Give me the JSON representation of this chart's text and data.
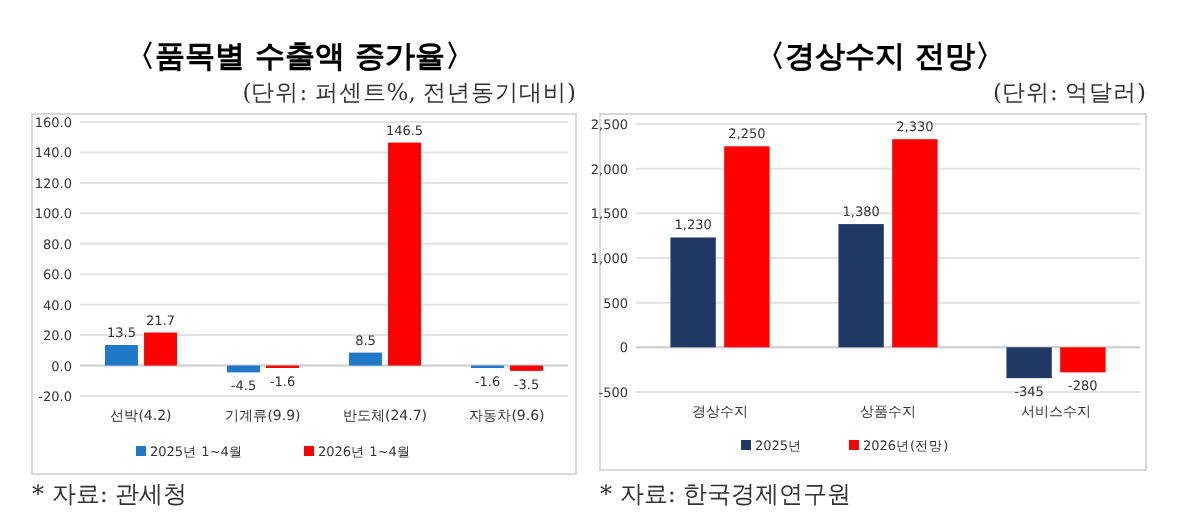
{
  "chart_data": [
    {
      "type": "bar",
      "title": "〈품목별 수출액 증가율〉",
      "subtitle": "(단위: 퍼센트%, 전년동기대비)",
      "categories": [
        "선박(4.2)",
        "기계류(9.9)",
        "반도체(24.7)",
        "자동차(9.6)"
      ],
      "series": [
        {
          "name": "2025년 1~4월",
          "color": "#1f78c8",
          "values": [
            13.5,
            -4.5,
            8.5,
            -1.6
          ]
        },
        {
          "name": "2026년 1~4월",
          "color": "#ff0000",
          "values": [
            21.7,
            -1.6,
            146.5,
            -3.5
          ]
        }
      ],
      "ylim": [
        -20,
        160
      ],
      "yticks": [
        {
          "value": -20,
          "label": "-20.0"
        },
        {
          "value": 0,
          "label": "0.0"
        },
        {
          "value": 20,
          "label": "20.0"
        },
        {
          "value": 40,
          "label": "40.0"
        },
        {
          "value": 60,
          "label": "60.0"
        },
        {
          "value": 80,
          "label": "80.0"
        },
        {
          "value": 100,
          "label": "100.0"
        },
        {
          "value": 120,
          "label": "120.0"
        },
        {
          "value": 140,
          "label": "140.0"
        },
        {
          "value": 160,
          "label": "160.0"
        }
      ],
      "grid": "y",
      "legend": "bottom",
      "data_labels": true,
      "annotations": [
        "* 자료: 관세청"
      ]
    },
    {
      "type": "bar",
      "title": "〈경상수지 전망〉",
      "subtitle": "(단위: 억달러)",
      "categories": [
        "경상수지",
        "상품수지",
        "서비스수지"
      ],
      "series": [
        {
          "name": "2025년",
          "color": "#1f3864",
          "values": [
            1230,
            1380,
            -345
          ],
          "value_labels": [
            "1,230",
            "1,380",
            "-345"
          ]
        },
        {
          "name": "2026년(전망)",
          "color": "#ff0000",
          "values": [
            2250,
            2330,
            -280
          ],
          "value_labels": [
            "2,250",
            "2,330",
            "-280"
          ]
        }
      ],
      "ylim": [
        -500,
        2500
      ],
      "yticks": [
        -500,
        0,
        500,
        {
          "value": 1000,
          "label": "1,000"
        },
        {
          "value": 1500,
          "label": "1,500"
        },
        {
          "value": 2000,
          "label": "2,000"
        },
        {
          "value": 2500,
          "label": "2,500"
        }
      ],
      "grid": "y",
      "legend": "bottom",
      "annotations": [
        "* 자료: 한국경제연구원"
      ]
    }
  ]
}
